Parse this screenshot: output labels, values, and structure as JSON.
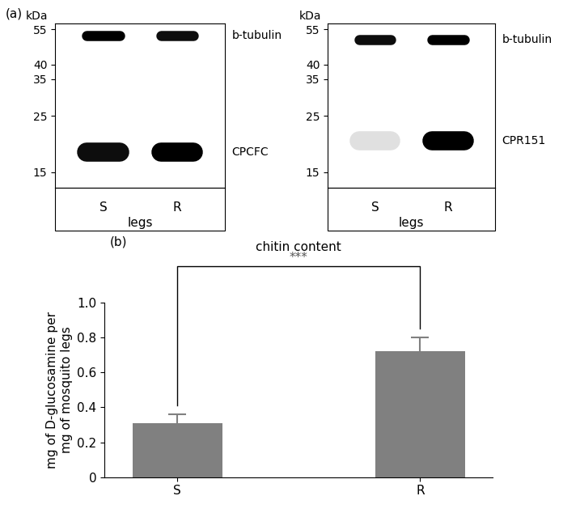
{
  "panel_a": {
    "label": "(a)",
    "blots": [
      {
        "unit": "kDa",
        "log": "y",
        "ylim": [
          13,
          58
        ],
        "yticks": [
          15,
          25,
          35,
          40,
          55
        ],
        "lanes": [
          "S",
          "R"
        ],
        "tissue": "legs",
        "bands": [
          {
            "name": "b-tubulin",
            "kDa": 52,
            "intensity": [
              1.0,
              0.95
            ]
          },
          {
            "name": "CPCFC",
            "kDa": 18,
            "intensity": [
              0.95,
              1.0
            ]
          }
        ]
      },
      {
        "unit": "kDa",
        "log": "y",
        "ylim": [
          13,
          58
        ],
        "yticks": [
          15,
          25,
          35,
          40,
          55
        ],
        "lanes": [
          "S",
          "R"
        ],
        "tissue": "legs",
        "bands": [
          {
            "name": "b-tubulin",
            "kDa": 50,
            "intensity": [
              0.95,
              1.0
            ]
          },
          {
            "name": "CPR151",
            "kDa": 20,
            "intensity": [
              0.12,
              1.0
            ]
          }
        ]
      }
    ]
  },
  "panel_b": {
    "label": "(b)"
  },
  "chart_data": {
    "type": "bar",
    "title": "chitin content",
    "categories": [
      "S",
      "R"
    ],
    "values": [
      0.31,
      0.72
    ],
    "errors": [
      0.05,
      0.08
    ],
    "color": "#808080",
    "y_label": "mg of D-glucosamine per\nmg of mosquito legs",
    "ylim": [
      0,
      1.0
    ],
    "yticks": [
      0,
      0.2,
      0.4,
      0.6,
      0.8,
      1.0
    ],
    "annotations": [
      {
        "text": "***",
        "between": [
          "S",
          "R"
        ]
      }
    ]
  }
}
